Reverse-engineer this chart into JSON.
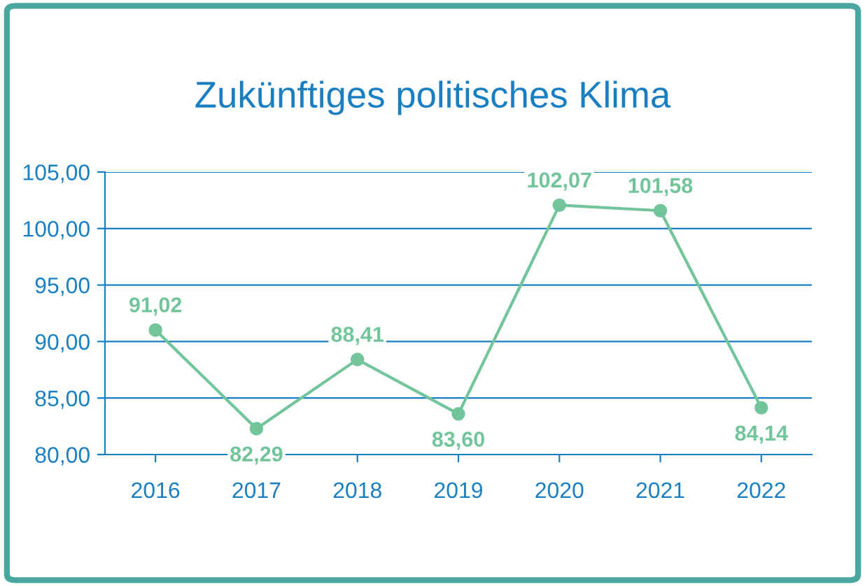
{
  "chart_data": {
    "type": "line",
    "title": "Zukünftiges politisches Klima",
    "categories": [
      "2016",
      "2017",
      "2018",
      "2019",
      "2020",
      "2021",
      "2022"
    ],
    "series": [
      {
        "color": "#72c59a",
        "values": [
          91.02,
          82.29,
          88.41,
          83.6,
          102.07,
          101.58,
          84.14
        ],
        "value_labels": [
          "91,02",
          "82,29",
          "88,41",
          "83,60",
          "102,07",
          "101,58",
          "84,14"
        ]
      }
    ],
    "ylim": [
      80,
      105
    ],
    "yticks": [
      {
        "value": 80,
        "label": "80,00"
      },
      {
        "value": 85,
        "label": "85,00"
      },
      {
        "value": 90,
        "label": "90,00"
      },
      {
        "value": 95,
        "label": "95,00"
      },
      {
        "value": 100,
        "label": "100,00"
      },
      {
        "value": 105,
        "label": "105,00"
      }
    ],
    "grid": "y",
    "marker": "circle",
    "line_style": "solid",
    "legend": false
  }
}
